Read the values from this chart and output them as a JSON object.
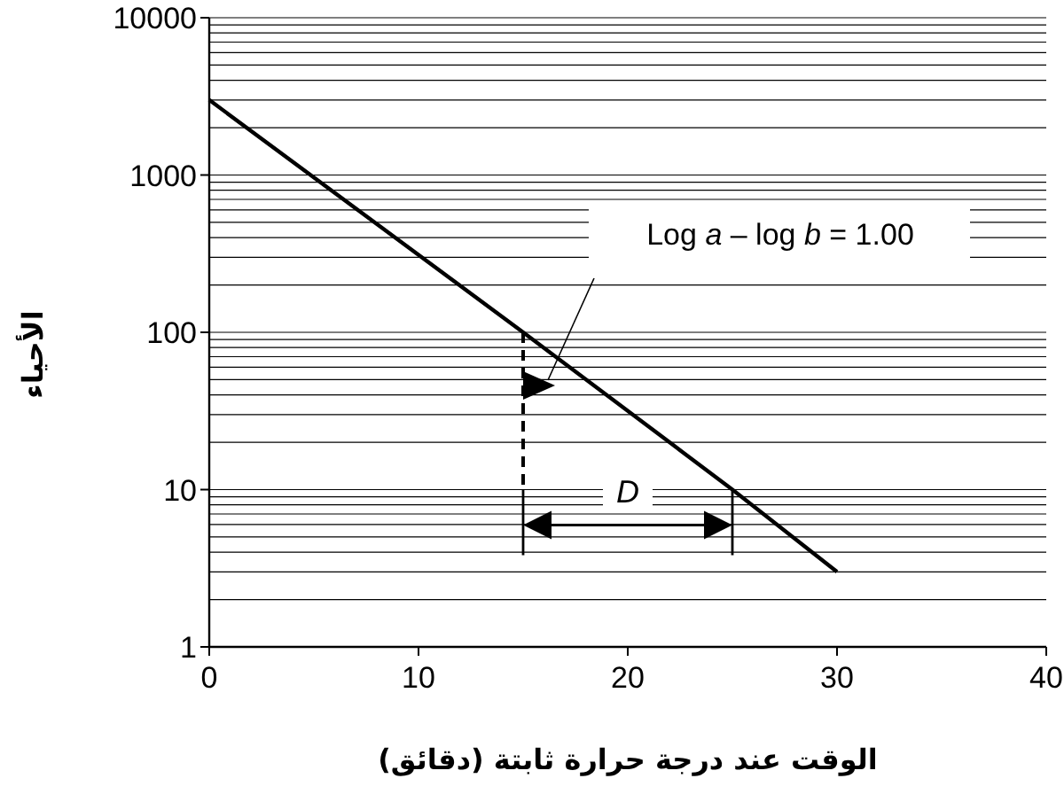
{
  "chart_data": {
    "type": "line",
    "xlabel": "الوقت عند درجة حرارة ثابتة (دقائق)",
    "ylabel": "الأحياء",
    "x": [
      0,
      15,
      25,
      30
    ],
    "values": [
      3000,
      100,
      10,
      3
    ],
    "color": "#000000",
    "log": "y",
    "xlim": [
      0,
      40
    ],
    "ylim": [
      1,
      10000
    ],
    "xticks": [
      0,
      10,
      20,
      30,
      40
    ],
    "yticks": [
      1,
      10,
      100,
      1000,
      10000
    ],
    "grid": "y",
    "marker": "none",
    "line_style": "solid",
    "annotations": [
      "Log *a* – log *b* = 1.00",
      {
        "text": "*D*",
        "x": 20,
        "y": 10
      }
    ]
  }
}
